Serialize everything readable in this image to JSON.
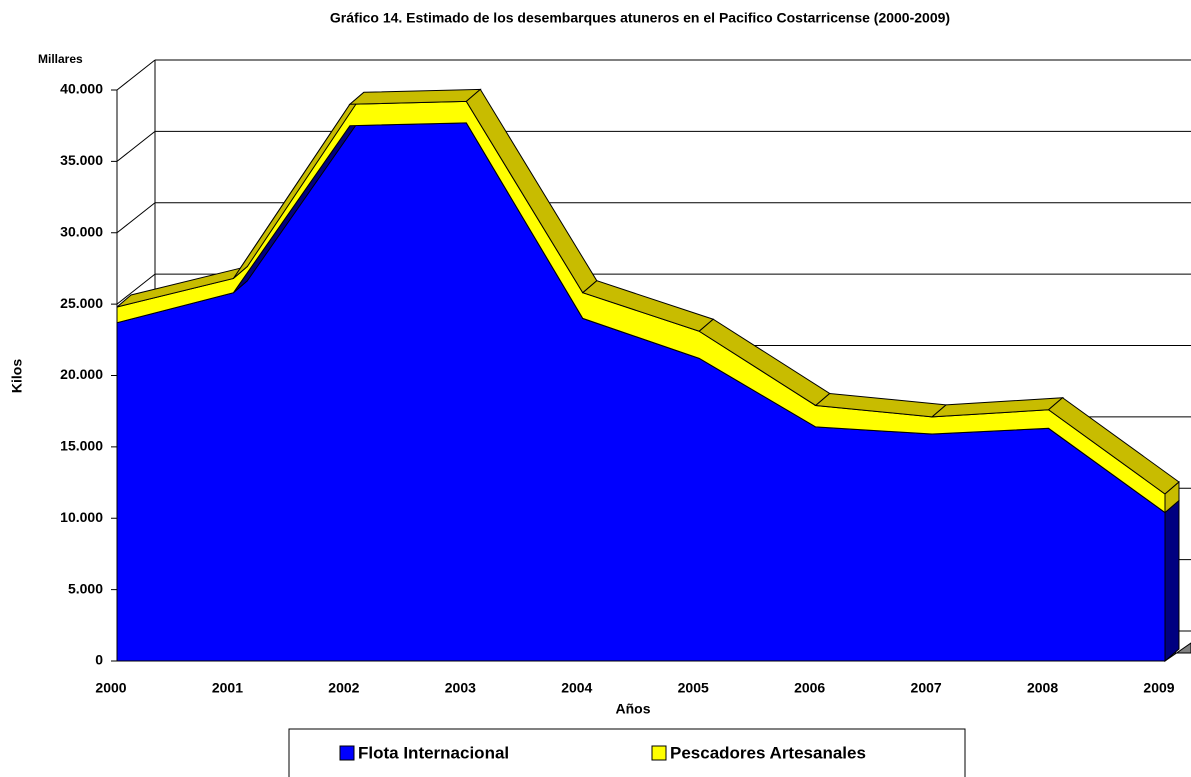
{
  "chart_data": {
    "type": "area3d",
    "title": "Gráfico 14. Estimado de los desembarques atuneros en el Pacifico Costarricense (2000-2009)",
    "unit_label": "Millares",
    "y_label": "Kilos",
    "x_label": "Años",
    "categories": [
      "2000",
      "2001",
      "2002",
      "2003",
      "2004",
      "2005",
      "2006",
      "2007",
      "2008",
      "2009"
    ],
    "series": [
      {
        "name": "Flota Internacional",
        "color": "#0000ff",
        "values": [
          23700,
          25800,
          37500,
          37700,
          24000,
          21200,
          16400,
          15900,
          16300,
          10400
        ]
      },
      {
        "name": "Pescadores Artesanales",
        "color": "#ffff00",
        "values": [
          1100,
          1000,
          1500,
          1500,
          1800,
          1900,
          1500,
          1200,
          1300,
          1300
        ]
      }
    ],
    "stacked": true,
    "ylim": [
      0,
      40000
    ],
    "yticks": [
      0,
      {
        "value": 5000,
        "label": "5.000"
      },
      {
        "value": 10000,
        "label": "10.000"
      },
      {
        "value": 15000,
        "label": "15.000"
      },
      {
        "value": 20000,
        "label": "20.000"
      },
      {
        "value": 25000,
        "label": "25.000"
      },
      {
        "value": 30000,
        "label": "30.000"
      },
      {
        "value": 35000,
        "label": "35.000"
      },
      {
        "value": 40000,
        "label": "40.000"
      }
    ],
    "grid": true
  }
}
